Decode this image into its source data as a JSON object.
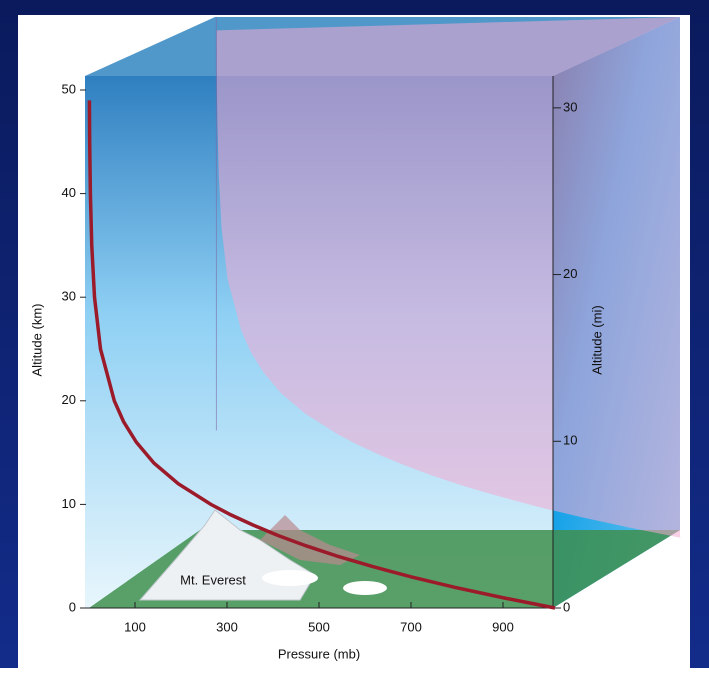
{
  "chart_data": {
    "type": "line",
    "x_label": "Pressure (mb)",
    "y_label": "Altitude (km)",
    "y2_label": "Altitude (mi)",
    "annotation": "Mt. Everest",
    "xlim": [
      0,
      1000
    ],
    "xticks": [
      100,
      300,
      500,
      700,
      900
    ],
    "ylim": [
      0,
      50
    ],
    "yticks": [
      0,
      10,
      20,
      30,
      40,
      50
    ],
    "y2lim": [
      0,
      31.07
    ],
    "y2ticks": [
      0,
      10,
      20,
      30
    ],
    "x": [
      1013,
      899,
      795,
      701,
      617,
      540,
      472,
      411,
      357,
      308,
      265,
      194,
      141,
      103,
      75,
      55,
      25,
      12,
      6,
      3,
      1.5,
      0.9
    ],
    "series": [
      {
        "color": "#9b1b2a",
        "values": [
          0,
          1,
          2,
          3,
          4,
          5,
          6,
          7,
          8,
          9,
          10,
          12,
          14,
          16,
          18,
          20,
          25,
          30,
          35,
          40,
          45,
          49
        ]
      }
    ]
  }
}
